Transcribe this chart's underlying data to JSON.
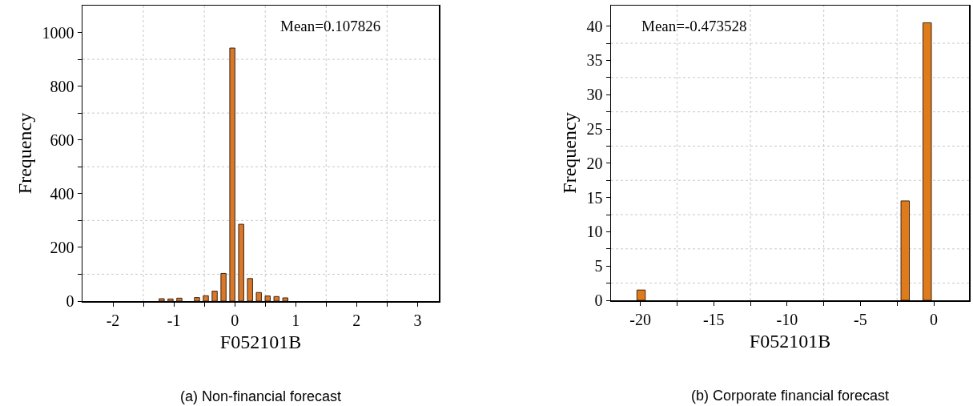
{
  "chart_data": [
    {
      "type": "histogram",
      "title": "(a) Non-financial forecast",
      "xlabel": "F052101B",
      "ylabel": "Frequency",
      "annotations": [
        "Mean=0.107826"
      ],
      "color": "#d9782a",
      "bins": [
        -1.2725,
        -1.1275,
        -0.9825,
        -0.8375,
        -0.6925,
        -0.5475,
        -0.4025,
        -0.2575,
        -0.1125,
        0.0325,
        0.1775,
        0.3225,
        0.4675,
        0.6125,
        0.7575,
        0.9025
      ],
      "values": [
        9,
        8,
        11,
        0,
        13,
        20,
        37,
        103,
        942,
        286,
        84,
        32,
        19,
        17,
        12
      ],
      "xlim": [
        -2.5,
        3.35
      ],
      "xticks": [
        -2,
        {
          "value": -1.5,
          "label": null
        },
        -1,
        {
          "value": -0.5,
          "label": null
        },
        0,
        {
          "value": 0.5,
          "label": null
        },
        1,
        {
          "value": 1.5,
          "label": null
        },
        2,
        {
          "value": 2.5,
          "label": null
        },
        3
      ],
      "ylim": [
        0,
        1100
      ],
      "yticks": [
        0,
        {
          "value": 100,
          "label": null
        },
        200,
        {
          "value": 300,
          "label": null
        },
        400,
        {
          "value": 500,
          "label": null
        },
        600,
        {
          "value": 700,
          "label": null
        },
        800,
        {
          "value": 900,
          "label": null
        },
        1000
      ],
      "grid": true
    },
    {
      "type": "histogram",
      "title": "(b) Corporate financial forecast",
      "xlabel": "F052101B",
      "ylabel": "Frequency",
      "annotations": [
        "Mean=-0.473528"
      ],
      "color": "#e07b1c",
      "bins": [
        -20.7,
        -19.2,
        -17.7,
        -16.2,
        -14.7,
        -13.2,
        -11.7,
        -10.2,
        -8.7,
        -7.2,
        -5.7,
        -4.2,
        -2.7,
        -1.2,
        0.3
      ],
      "values": [
        1.5,
        0,
        0,
        0,
        0,
        0,
        0,
        0,
        0,
        0,
        0,
        0,
        14.5,
        40.5
      ],
      "xlim": [
        -22,
        2.4
      ],
      "xticks": [
        -20,
        {
          "value": -17.5,
          "label": null
        },
        -15,
        {
          "value": -12.5,
          "label": null
        },
        -10,
        {
          "value": -7.5,
          "label": null
        },
        -5,
        {
          "value": -2.5,
          "label": null
        },
        0
      ],
      "ylim": [
        0,
        43
      ],
      "yticks": [
        0,
        {
          "value": 2.5,
          "label": null
        },
        5,
        {
          "value": 7.5,
          "label": null
        },
        10,
        {
          "value": 12.5,
          "label": null
        },
        15,
        {
          "value": 17.5,
          "label": null
        },
        20,
        {
          "value": 22.5,
          "label": null
        },
        25,
        {
          "value": 27.5,
          "label": null
        },
        30,
        {
          "value": 32.5,
          "label": null
        },
        35,
        {
          "value": 37.5,
          "label": null
        },
        40
      ],
      "grid": true
    }
  ]
}
